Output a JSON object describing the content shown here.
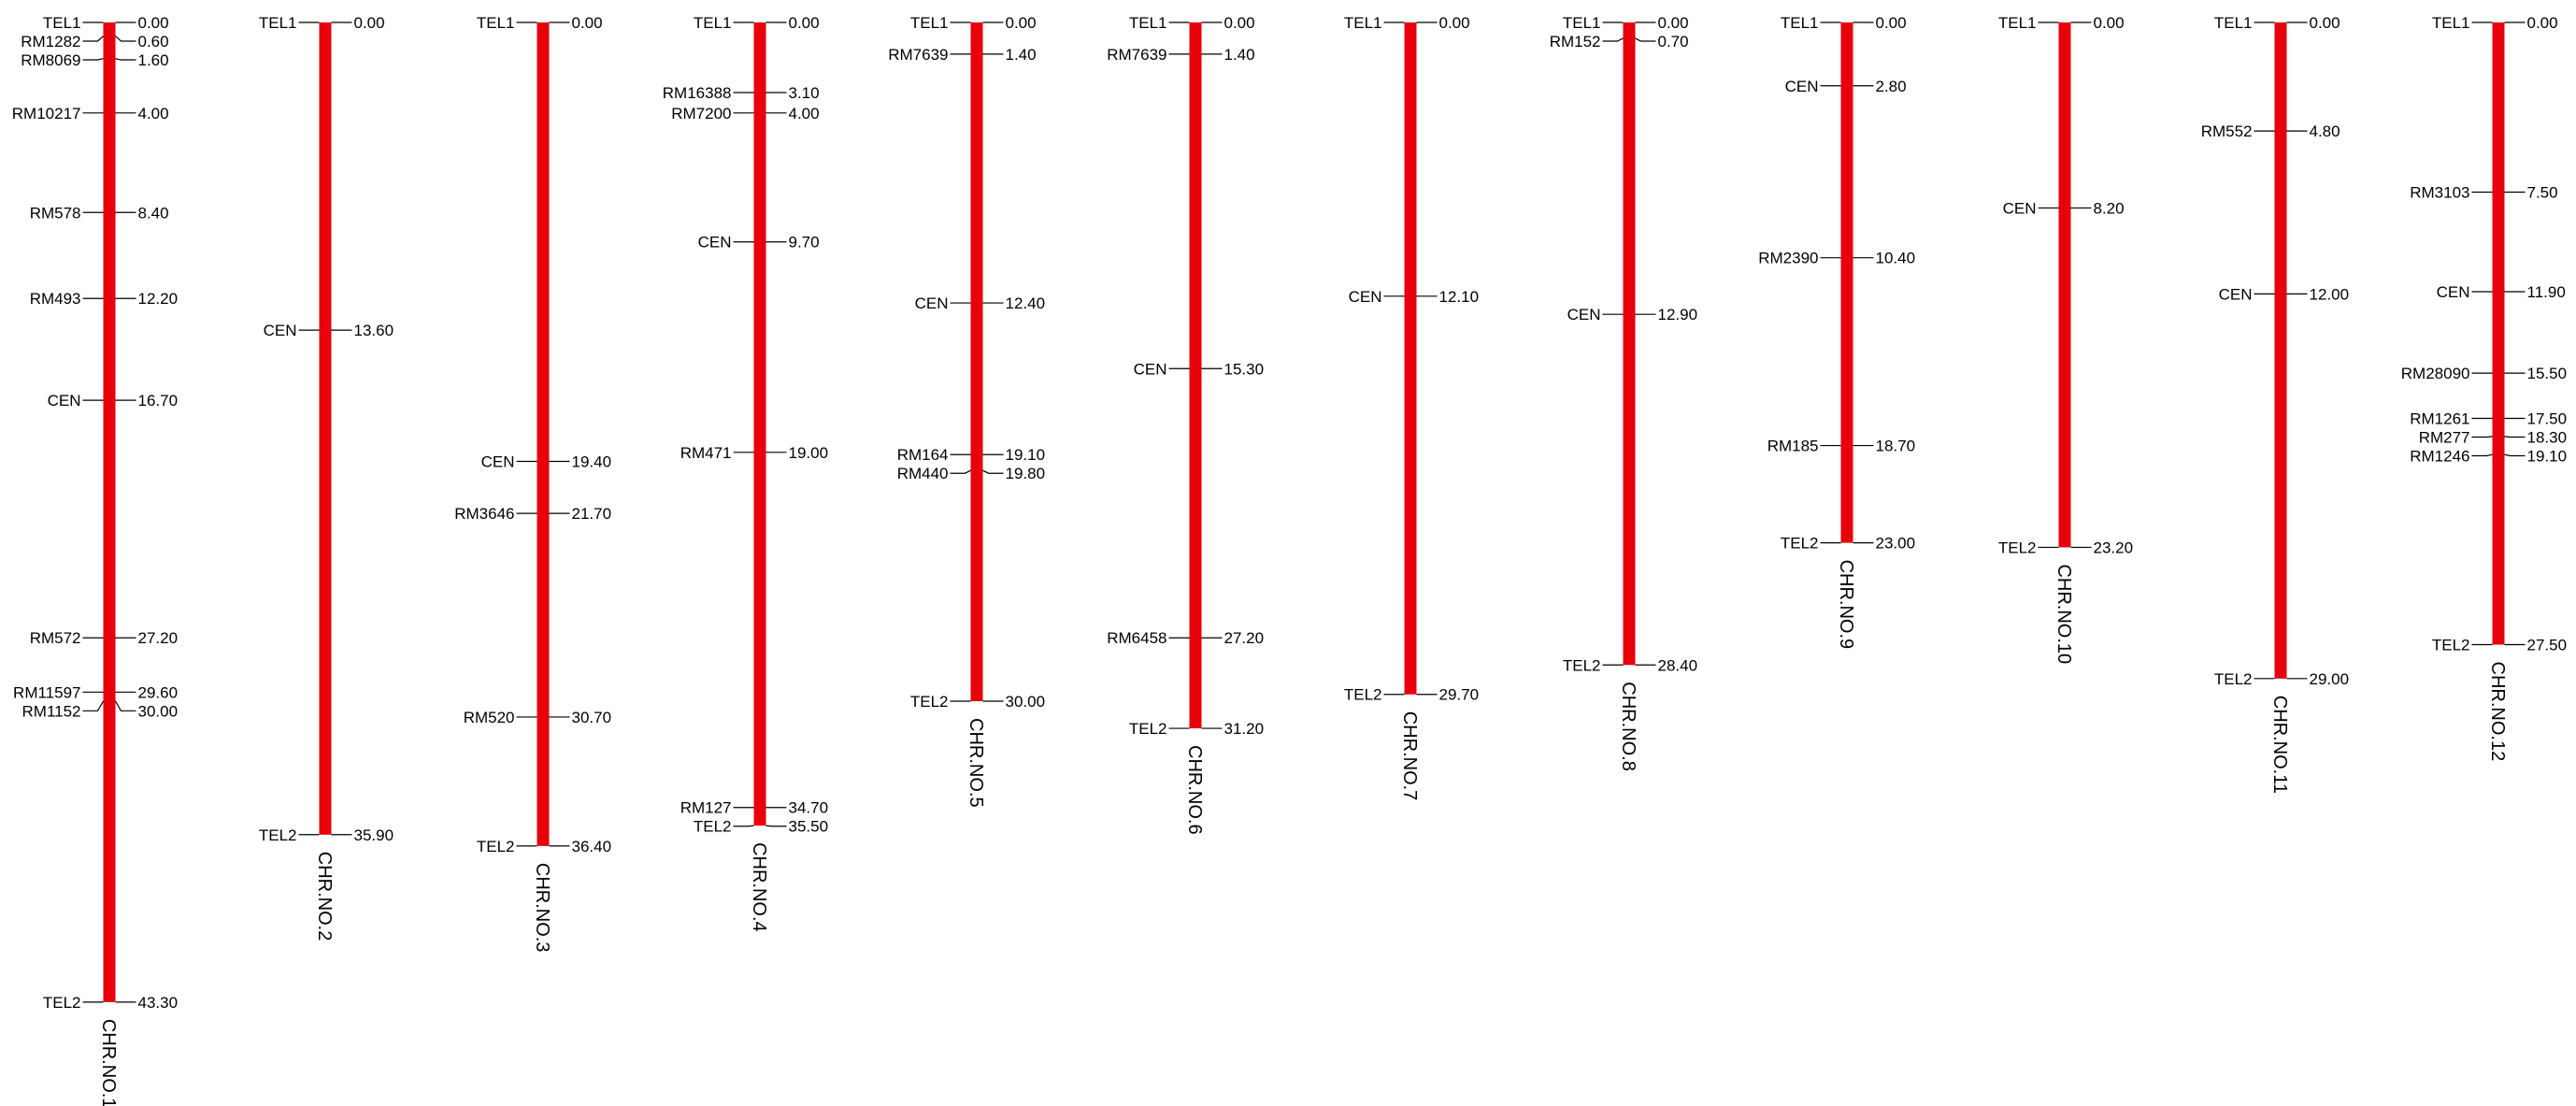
{
  "diagram": {
    "type": "linkage-map",
    "bar_color": "#e8000b",
    "text_color": "#000000",
    "chromosomes": [
      {
        "name": "CHR.NO.1",
        "markers": [
          {
            "label": "TEL1",
            "pos": 0.0,
            "value": "0.00"
          },
          {
            "label": "RM1282",
            "pos": 0.6,
            "value": "0.60"
          },
          {
            "label": "RM8069",
            "pos": 1.6,
            "value": "1.60"
          },
          {
            "label": "RM10217",
            "pos": 4.0,
            "value": "4.00"
          },
          {
            "label": "RM578",
            "pos": 8.4,
            "value": "8.40"
          },
          {
            "label": "RM493",
            "pos": 12.2,
            "value": "12.20"
          },
          {
            "label": "CEN",
            "pos": 16.7,
            "value": "16.70"
          },
          {
            "label": "RM572",
            "pos": 27.2,
            "value": "27.20"
          },
          {
            "label": "RM11597",
            "pos": 29.6,
            "value": "29.60"
          },
          {
            "label": "RM1152",
            "pos": 30.0,
            "value": "30.00"
          },
          {
            "label": "TEL2",
            "pos": 43.3,
            "value": "43.30"
          }
        ]
      },
      {
        "name": "CHR.NO.2",
        "markers": [
          {
            "label": "TEL1",
            "pos": 0.0,
            "value": "0.00"
          },
          {
            "label": "CEN",
            "pos": 13.6,
            "value": "13.60"
          },
          {
            "label": "TEL2",
            "pos": 35.9,
            "value": "35.90"
          }
        ]
      },
      {
        "name": "CHR.NO.3",
        "markers": [
          {
            "label": "TEL1",
            "pos": 0.0,
            "value": "0.00"
          },
          {
            "label": "CEN",
            "pos": 19.4,
            "value": "19.40"
          },
          {
            "label": "RM3646",
            "pos": 21.7,
            "value": "21.70"
          },
          {
            "label": "RM520",
            "pos": 30.7,
            "value": "30.70"
          },
          {
            "label": "TEL2",
            "pos": 36.4,
            "value": "36.40"
          }
        ]
      },
      {
        "name": "CHR.NO.4",
        "markers": [
          {
            "label": "TEL1",
            "pos": 0.0,
            "value": "0.00"
          },
          {
            "label": "RM16388",
            "pos": 3.1,
            "value": "3.10"
          },
          {
            "label": "RM7200",
            "pos": 4.0,
            "value": "4.00"
          },
          {
            "label": "CEN",
            "pos": 9.7,
            "value": "9.70"
          },
          {
            "label": "RM471",
            "pos": 19.0,
            "value": "19.00"
          },
          {
            "label": "RM127",
            "pos": 34.7,
            "value": "34.70"
          },
          {
            "label": "TEL2",
            "pos": 35.5,
            "value": "35.50"
          }
        ]
      },
      {
        "name": "CHR.NO.5",
        "markers": [
          {
            "label": "TEL1",
            "pos": 0.0,
            "value": "0.00"
          },
          {
            "label": "RM7639",
            "pos": 1.4,
            "value": "1.40"
          },
          {
            "label": "CEN",
            "pos": 12.4,
            "value": "12.40"
          },
          {
            "label": "RM164",
            "pos": 19.1,
            "value": "19.10"
          },
          {
            "label": "RM440",
            "pos": 19.8,
            "value": "19.80"
          },
          {
            "label": "TEL2",
            "pos": 30.0,
            "value": "30.00"
          }
        ]
      },
      {
        "name": "CHR.NO.6",
        "markers": [
          {
            "label": "TEL1",
            "pos": 0.0,
            "value": "0.00"
          },
          {
            "label": "RM7639",
            "pos": 1.4,
            "value": "1.40"
          },
          {
            "label": "CEN",
            "pos": 15.3,
            "value": "15.30"
          },
          {
            "label": "RM6458",
            "pos": 27.2,
            "value": "27.20"
          },
          {
            "label": "TEL2",
            "pos": 31.2,
            "value": "31.20"
          }
        ]
      },
      {
        "name": "CHR.NO.7",
        "markers": [
          {
            "label": "TEL1",
            "pos": 0.0,
            "value": "0.00"
          },
          {
            "label": "CEN",
            "pos": 12.1,
            "value": "12.10"
          },
          {
            "label": "TEL2",
            "pos": 29.7,
            "value": "29.70"
          }
        ]
      },
      {
        "name": "CHR.NO.8",
        "markers": [
          {
            "label": "TEL1",
            "pos": 0.0,
            "value": "0.00"
          },
          {
            "label": "RM152",
            "pos": 0.7,
            "value": "0.70"
          },
          {
            "label": "CEN",
            "pos": 12.9,
            "value": "12.90"
          },
          {
            "label": "TEL2",
            "pos": 28.4,
            "value": "28.40"
          }
        ]
      },
      {
        "name": "CHR.NO.9",
        "markers": [
          {
            "label": "TEL1",
            "pos": 0.0,
            "value": "0.00"
          },
          {
            "label": "CEN",
            "pos": 2.8,
            "value": "2.80"
          },
          {
            "label": "RM2390",
            "pos": 10.4,
            "value": "10.40"
          },
          {
            "label": "RM185",
            "pos": 18.7,
            "value": "18.70"
          },
          {
            "label": "TEL2",
            "pos": 23.0,
            "value": "23.00"
          }
        ]
      },
      {
        "name": "CHR.NO.10",
        "markers": [
          {
            "label": "TEL1",
            "pos": 0.0,
            "value": "0.00"
          },
          {
            "label": "CEN",
            "pos": 8.2,
            "value": "8.20"
          },
          {
            "label": "TEL2",
            "pos": 23.2,
            "value": "23.20"
          }
        ]
      },
      {
        "name": "CHR.NO.11",
        "markers": [
          {
            "label": "TEL1",
            "pos": 0.0,
            "value": "0.00"
          },
          {
            "label": "RM552",
            "pos": 4.8,
            "value": "4.80"
          },
          {
            "label": "CEN",
            "pos": 12.0,
            "value": "12.00"
          },
          {
            "label": "TEL2",
            "pos": 29.0,
            "value": "29.00"
          }
        ]
      },
      {
        "name": "CHR.NO.12",
        "markers": [
          {
            "label": "TEL1",
            "pos": 0.0,
            "value": "0.00"
          },
          {
            "label": "RM3103",
            "pos": 7.5,
            "value": "7.50"
          },
          {
            "label": "CEN",
            "pos": 11.9,
            "value": "11.90"
          },
          {
            "label": "RM28090",
            "pos": 15.5,
            "value": "15.50"
          },
          {
            "label": "RM1261",
            "pos": 17.5,
            "value": "17.50"
          },
          {
            "label": "RM277",
            "pos": 18.3,
            "value": "18.30"
          },
          {
            "label": "RM1246",
            "pos": 19.1,
            "value": "19.10"
          },
          {
            "label": "TEL2",
            "pos": 27.5,
            "value": "27.50"
          }
        ]
      }
    ]
  }
}
